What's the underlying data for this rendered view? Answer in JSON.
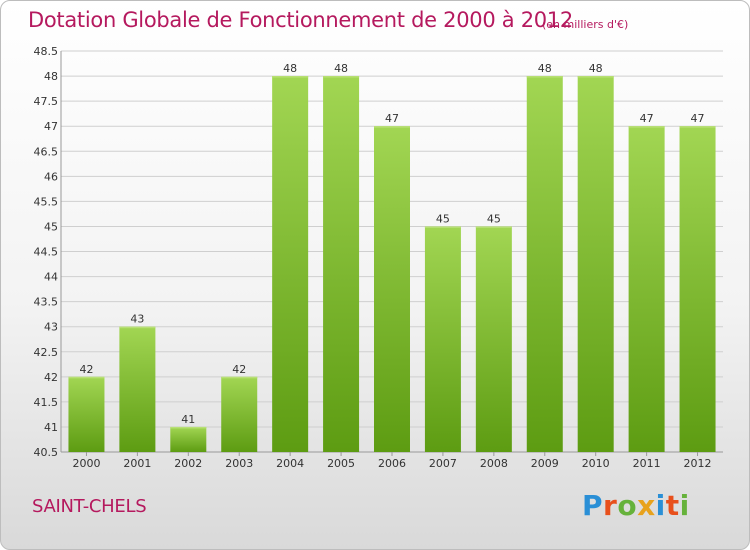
{
  "header": {
    "title": "Dotation Globale de Fonctionnement de 2000 à 2012",
    "unit": "(en milliers d'€)"
  },
  "footer": {
    "commune": "SAINT-CHELS",
    "logo_text": "Proxiti"
  },
  "colors": {
    "title": "#b5195e",
    "bar_top": "#a2d653",
    "bar_bottom": "#5d9c12",
    "grid": "#cfcfcf",
    "logo_letters": [
      "#2a8fd6",
      "#e8501c",
      "#66b23b",
      "#e8a21c",
      "#2a8fd6",
      "#e8501c",
      "#66b23b"
    ]
  },
  "chart_data": {
    "type": "bar",
    "categories": [
      "2000",
      "2001",
      "2002",
      "2003",
      "2004",
      "2005",
      "2006",
      "2007",
      "2008",
      "2009",
      "2010",
      "2011",
      "2012"
    ],
    "values": [
      42,
      43,
      41,
      42,
      48,
      48,
      47,
      45,
      45,
      48,
      48,
      47,
      47
    ],
    "title": "Dotation Globale de Fonctionnement de 2000 à 2012",
    "ylim": [
      40.5,
      48.5
    ],
    "yticks": [
      40.5,
      41,
      41.5,
      42,
      42.5,
      43,
      43.5,
      44,
      44.5,
      45,
      45.5,
      46,
      46.5,
      47,
      47.5,
      48,
      48.5
    ],
    "grid": true,
    "legend": "none"
  }
}
